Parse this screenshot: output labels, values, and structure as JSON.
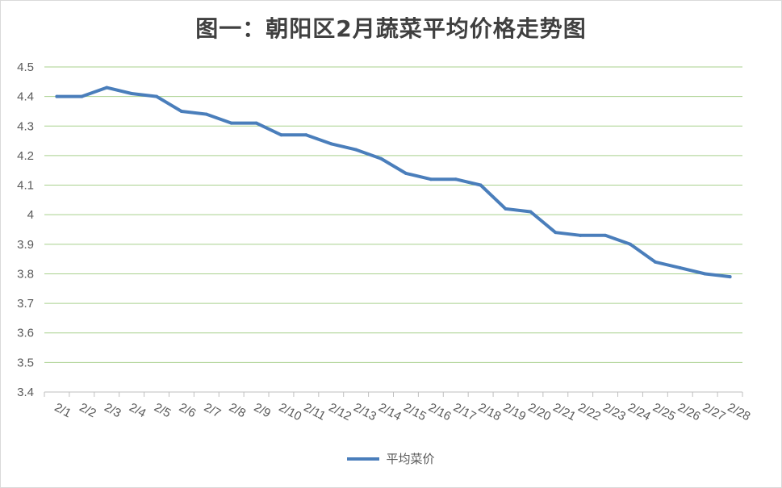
{
  "chart_data": {
    "type": "line",
    "title": "图一：朝阳区2月蔬菜平均价格走势图",
    "categories": [
      "2/1",
      "2/2",
      "2/3",
      "2/4",
      "2/5",
      "2/6",
      "2/7",
      "2/8",
      "2/9",
      "2/10",
      "2/11",
      "2/12",
      "2/13",
      "2/14",
      "2/15",
      "2/16",
      "2/17",
      "2/18",
      "2/19",
      "2/20",
      "2/21",
      "2/22",
      "2/23",
      "2/24",
      "2/25",
      "2/26",
      "2/27",
      "2/28"
    ],
    "series": [
      {
        "name": "平均菜价",
        "color": "#4a7ebb",
        "values": [
          4.4,
          4.4,
          4.43,
          4.41,
          4.4,
          4.35,
          4.34,
          4.31,
          4.31,
          4.27,
          4.27,
          4.24,
          4.22,
          4.19,
          4.14,
          4.12,
          4.12,
          4.1,
          4.02,
          4.01,
          3.94,
          3.93,
          3.93,
          3.9,
          3.84,
          3.82,
          3.8,
          3.79
        ]
      }
    ],
    "ylim": [
      3.4,
      4.5
    ],
    "yticks": [
      "3.4",
      "3.5",
      "3.6",
      "3.7",
      "3.8",
      "3.9",
      "4",
      "4.1",
      "4.2",
      "4.3",
      "4.4",
      "4.5"
    ],
    "grid": true,
    "grid_color": "#a9d18e",
    "legend_position": "bottom",
    "xlabel": "",
    "ylabel": ""
  }
}
